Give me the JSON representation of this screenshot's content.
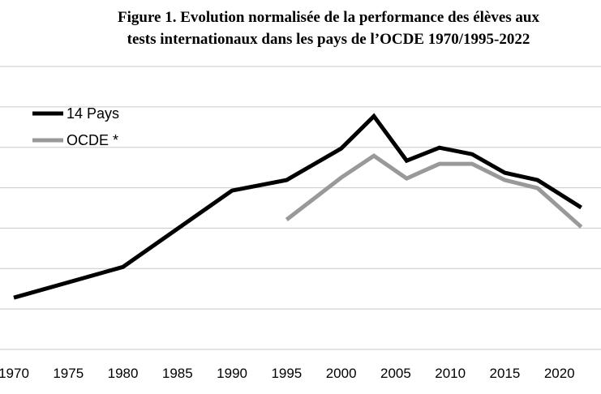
{
  "chart_data": {
    "type": "line",
    "title": [
      "Figure 1. Evolution normalisée de la performance des élèves aux",
      "tests internationaux dans les pays de l’OCDE 1970/1995-2022"
    ],
    "x": [
      1970,
      1980,
      1990,
      1995,
      2000,
      2003,
      2006,
      2009,
      2012,
      2015,
      2018,
      2022
    ],
    "series": [
      {
        "name": "14 Pays",
        "color": "#000000",
        "values": [
          1.28,
          2.04,
          3.93,
          4.19,
          4.97,
          5.77,
          4.67,
          4.99,
          4.83,
          4.37,
          4.19,
          3.51
        ]
      },
      {
        "name": "OCDE *",
        "color": "#999999",
        "values": [
          null,
          null,
          null,
          3.21,
          4.25,
          4.79,
          4.23,
          4.59,
          4.59,
          4.19,
          3.99,
          3.03
        ]
      }
    ],
    "xlim": [
      1970,
      2025
    ],
    "xticks": [
      1970,
      1975,
      1980,
      1985,
      1990,
      1995,
      2000,
      2005,
      2010,
      2015,
      2020
    ],
    "ylim": [
      0,
      7
    ],
    "yticks": [
      0,
      1,
      2,
      3,
      4,
      5,
      6,
      7
    ],
    "y_tick_labels": false,
    "grid": true,
    "legend": "upper-left"
  }
}
